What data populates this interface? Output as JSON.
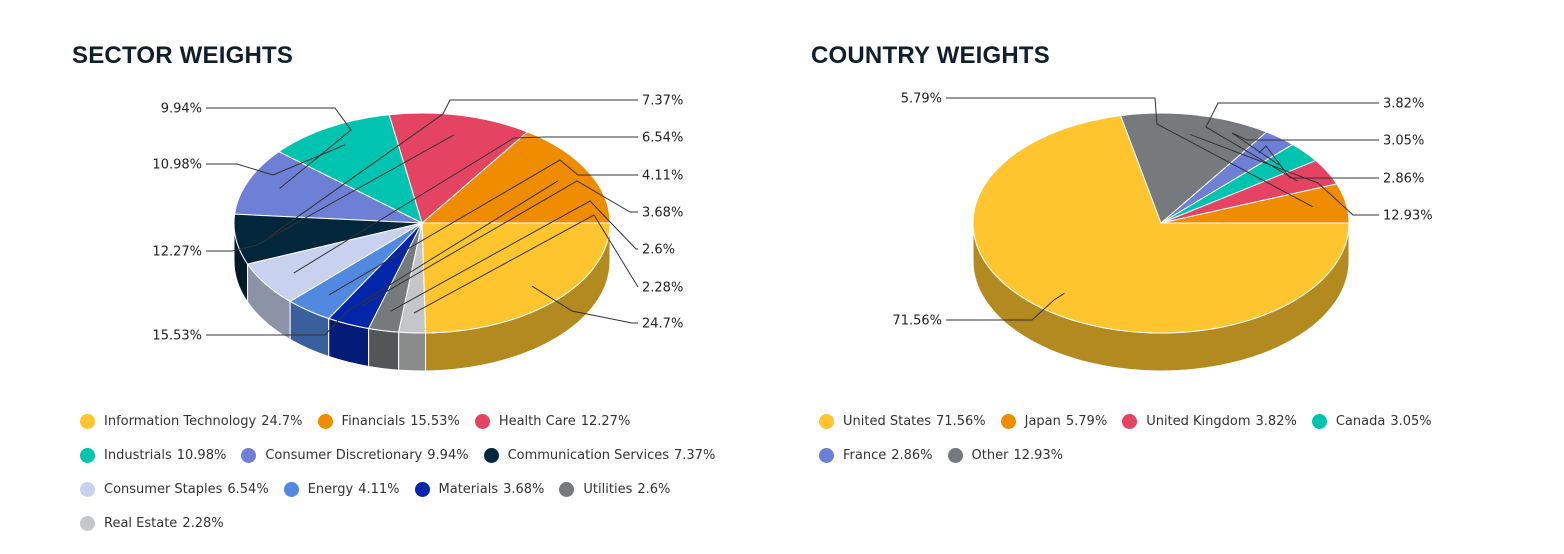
{
  "chart_data": [
    {
      "type": "pie",
      "title": "SECTOR WEIGHTS",
      "legend_position": "bottom",
      "value_suffix": "%",
      "slices": [
        {
          "name": "Information Technology",
          "label": "24.7%",
          "value": 24.7,
          "color": "#FFC52E"
        },
        {
          "name": "Financials",
          "label": "15.53%",
          "value": 15.53,
          "color": "#F08C00"
        },
        {
          "name": "Health Care",
          "label": "12.27%",
          "value": 12.27,
          "color": "#E44461"
        },
        {
          "name": "Industrials",
          "label": "10.98%",
          "value": 10.98,
          "color": "#00C3B0"
        },
        {
          "name": "Consumer Discretionary",
          "label": "9.94%",
          "value": 9.94,
          "color": "#6E7FD6"
        },
        {
          "name": "Communication Services",
          "label": "7.37%",
          "value": 7.37,
          "color": "#02263A"
        },
        {
          "name": "Consumer Staples",
          "label": "6.54%",
          "value": 6.54,
          "color": "#C8D2EE"
        },
        {
          "name": "Energy",
          "label": "4.11%",
          "value": 4.11,
          "color": "#5189E0"
        },
        {
          "name": "Materials",
          "label": "3.68%",
          "value": 3.68,
          "color": "#0226A9"
        },
        {
          "name": "Utilities",
          "label": "2.6%",
          "value": 2.6,
          "color": "#777A7C"
        },
        {
          "name": "Real Estate",
          "label": "2.28%",
          "value": 2.28,
          "color": "#C5C6C7"
        }
      ]
    },
    {
      "type": "pie",
      "title": "COUNTRY WEIGHTS",
      "legend_position": "bottom",
      "value_suffix": "%",
      "slices": [
        {
          "name": "United States",
          "label": "71.56%",
          "value": 71.56,
          "color": "#FFC52E"
        },
        {
          "name": "Japan",
          "label": "5.79%",
          "value": 5.79,
          "color": "#F08C00"
        },
        {
          "name": "United Kingdom",
          "label": "3.82%",
          "value": 3.82,
          "color": "#E44461"
        },
        {
          "name": "Canada",
          "label": "3.05%",
          "value": 3.05,
          "color": "#00C3B0"
        },
        {
          "name": "France",
          "label": "2.86%",
          "value": 2.86,
          "color": "#6E7FD6"
        },
        {
          "name": "Other",
          "label": "12.93%",
          "value": 12.93,
          "color": "#777A7C"
        }
      ]
    }
  ]
}
